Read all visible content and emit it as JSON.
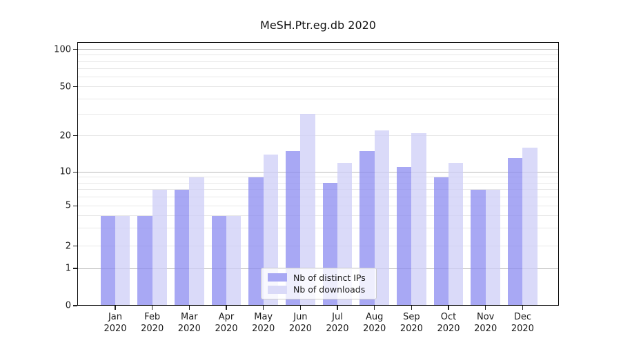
{
  "chart_data": {
    "type": "bar",
    "title": "MeSH.Ptr.eg.db 2020",
    "x_tick_months": [
      "Jan",
      "Feb",
      "Mar",
      "Apr",
      "May",
      "Jun",
      "Jul",
      "Aug",
      "Sep",
      "Oct",
      "Nov",
      "Dec"
    ],
    "x_tick_year": "2020",
    "series": [
      {
        "name": "Nb of distinct IPs",
        "color": "rgba(139,139,240,0.75)",
        "color_on_white": "#a8a8f4",
        "values": [
          4,
          4,
          7,
          4,
          9,
          15,
          8,
          15,
          11,
          9,
          7,
          13
        ]
      },
      {
        "name": "Nb of downloads",
        "color": "rgba(206,206,247,0.75)",
        "color_on_white": "#dadaf8",
        "values": [
          4,
          7,
          9,
          4,
          14,
          30,
          12,
          22,
          21,
          12,
          7,
          16
        ]
      }
    ],
    "y_axis": {
      "scale": "log-like (logarithmic above 1, linear 0 to 1)",
      "tick_labels": [
        0,
        1,
        2,
        5,
        10,
        20,
        50,
        100
      ],
      "major_gridlines": [
        1,
        10,
        100
      ],
      "minor_gridlines": [
        2,
        3,
        4,
        5,
        6,
        7,
        8,
        9,
        20,
        30,
        40,
        50,
        60,
        70,
        80,
        90
      ],
      "ylim": [
        0,
        115
      ]
    },
    "legend": {
      "entries": [
        "Nb of distinct IPs",
        "Nb of downloads"
      ],
      "position": "lower center"
    },
    "colors": {
      "major_grid": "#b9b9b9",
      "minor_grid": "#e7e7e7",
      "spine": "#000000",
      "text": "#1a1a1a"
    }
  }
}
